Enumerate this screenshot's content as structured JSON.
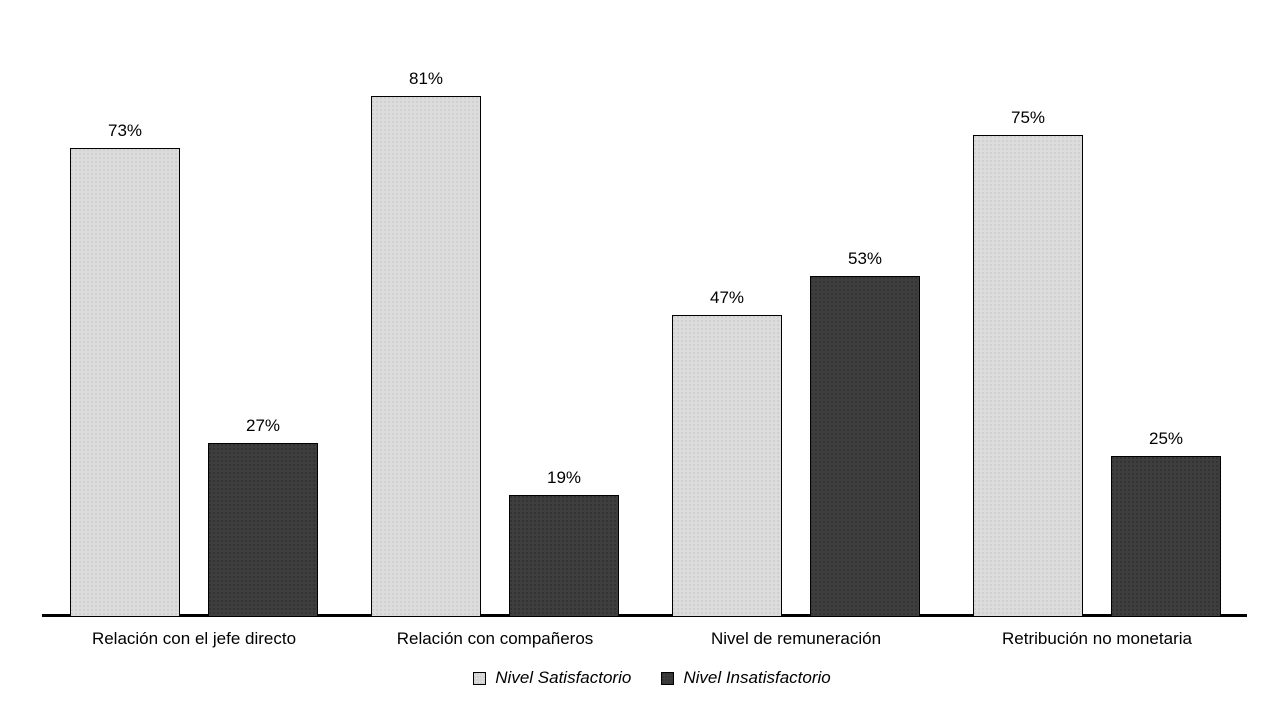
{
  "chart_data": {
    "type": "bar",
    "categories": [
      "Relación con el jefe directo",
      "Relación con compañeros",
      "Nivel de remuneración",
      "Retribución no monetaria"
    ],
    "series": [
      {
        "name": "Nivel Satisfactorio",
        "values": [
          73,
          81,
          47,
          75
        ],
        "color": "#dcdcdc",
        "key": "satisfactorio"
      },
      {
        "name": "Nivel Insatisfactorio",
        "values": [
          27,
          19,
          53,
          25
        ],
        "color": "#3e3e3e",
        "key": "insatisfactorio"
      }
    ],
    "data_labels": [
      [
        "73%",
        "81%",
        "47%",
        "75%"
      ],
      [
        "27%",
        "19%",
        "53%",
        "25%"
      ]
    ],
    "value_suffix": "%",
    "title": "",
    "xlabel": "",
    "ylabel": "",
    "ylim": [
      0,
      96
    ],
    "grid": false,
    "legend_position": "bottom",
    "axis_color": "#000000",
    "background_color": "#ffffff",
    "label_color": "#000000"
  }
}
